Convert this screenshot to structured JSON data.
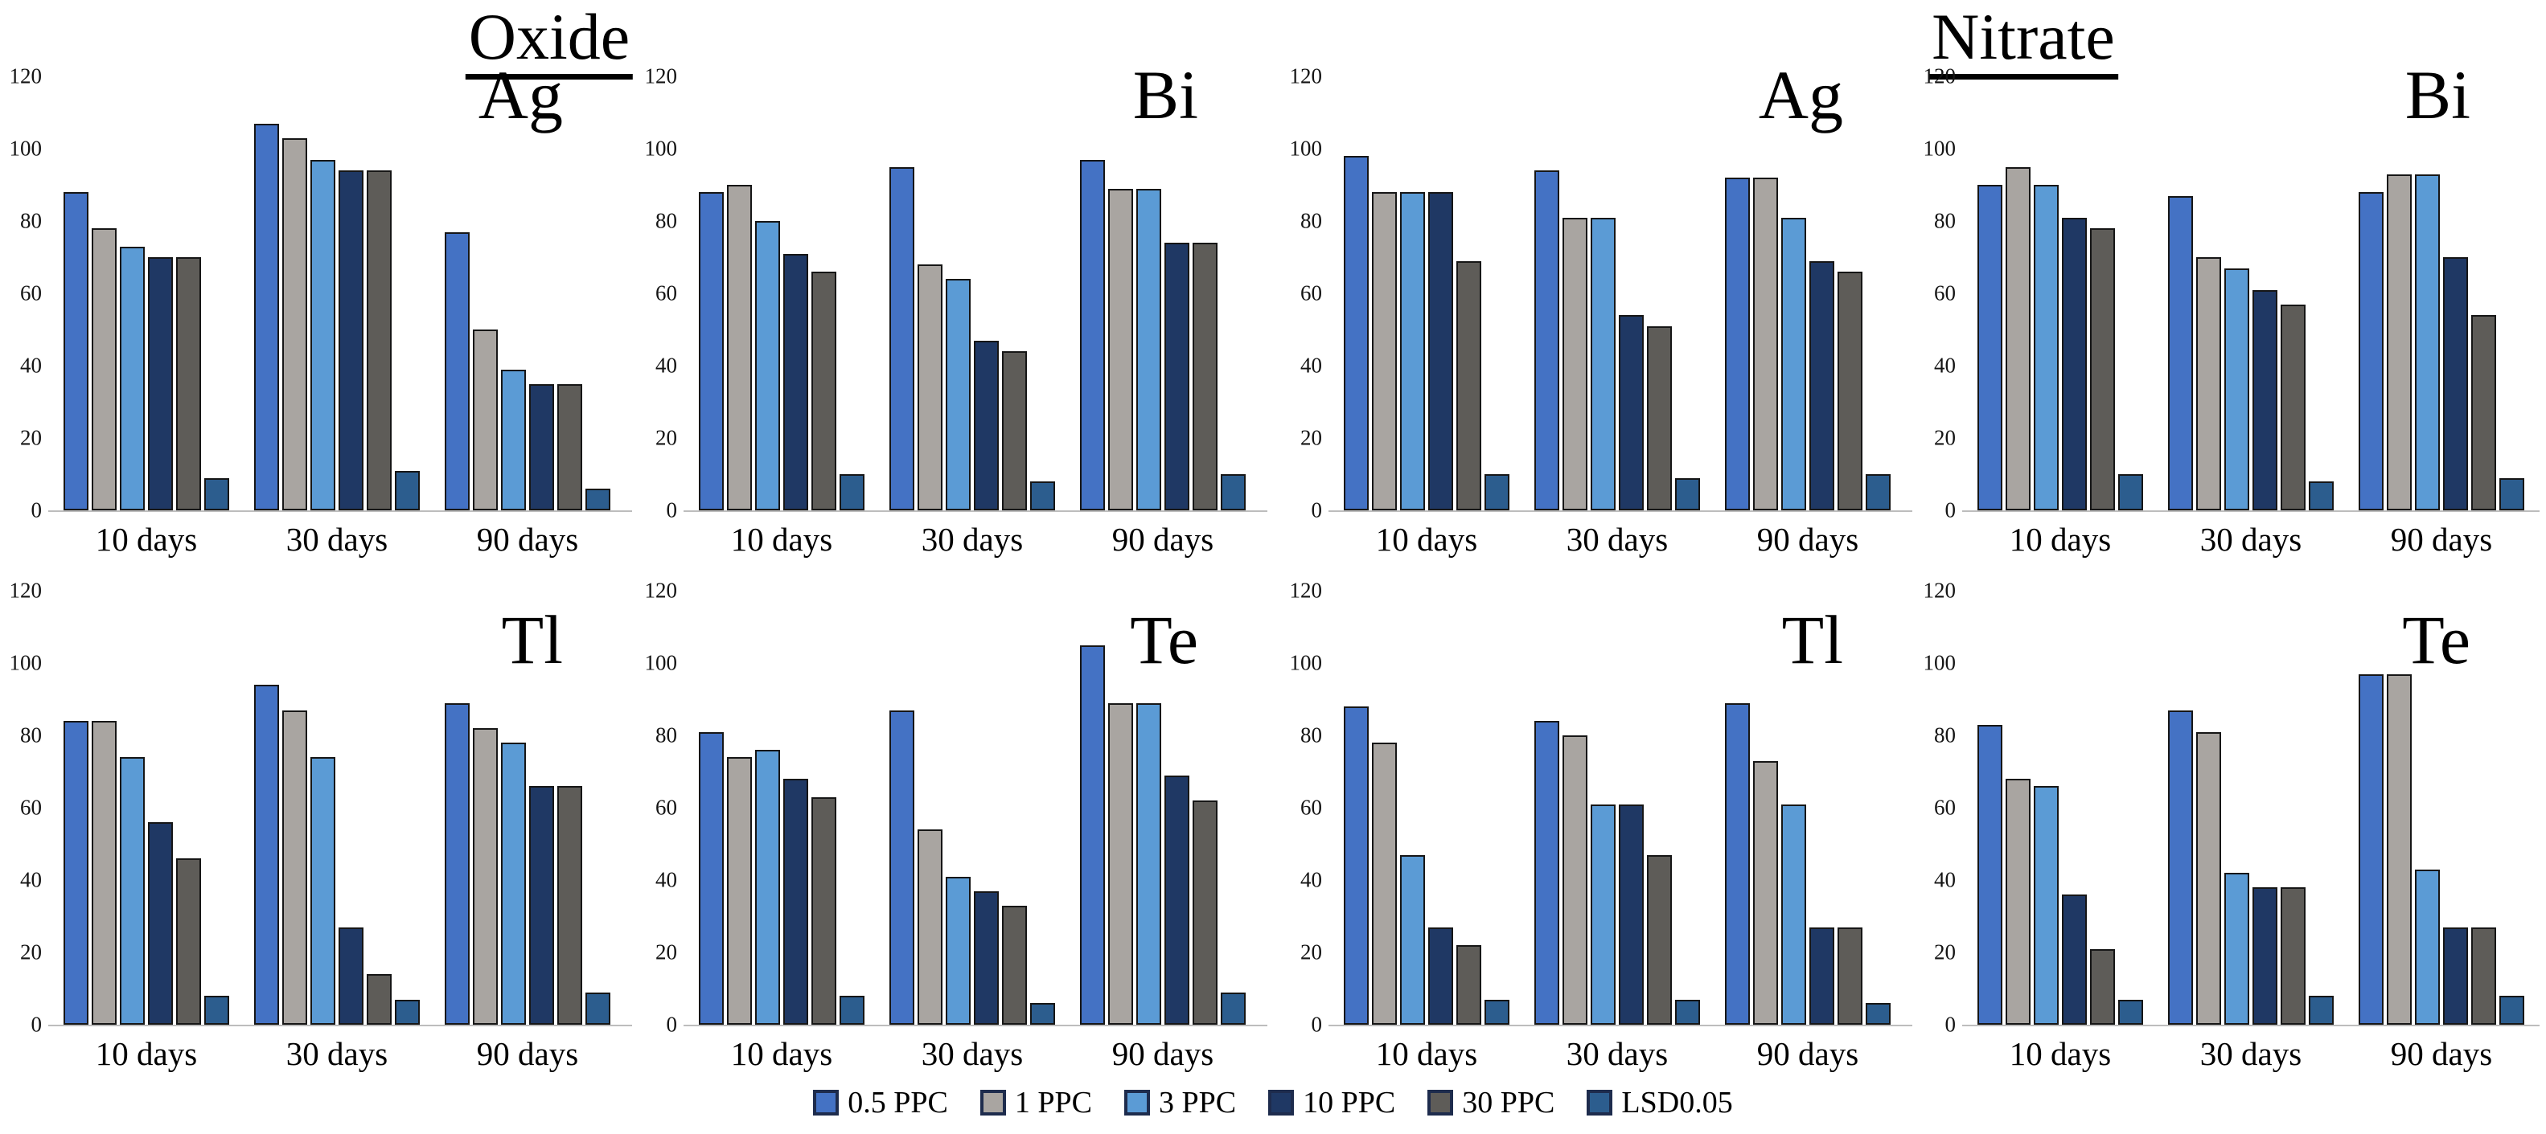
{
  "figure": {
    "titles": {
      "left": "Oxide",
      "right": "Nitrate"
    }
  },
  "axis": {
    "ylim": [
      0,
      120
    ],
    "ticks": [
      0,
      20,
      40,
      60,
      80,
      100,
      120
    ],
    "grid": false,
    "axis_line_color": "#bdbdbd",
    "tick_color": "#141414"
  },
  "categories": [
    "10 days",
    "30 days",
    "90 days"
  ],
  "series_names": [
    "0.5 PPC",
    "1 PPC",
    "3 PPC",
    "10 PPC",
    "30 PPC",
    "LSD0.05"
  ],
  "series_colors": [
    "#4472c4",
    "#a9a5a1",
    "#5b9bd5",
    "#1f3864",
    "#5e5c58",
    "#2c5d8e"
  ],
  "legend": {
    "position": "bottom-center",
    "swatch_border": "#1e2c4d",
    "items": [
      {
        "label": "0.5 PPC",
        "color": "#4472c4"
      },
      {
        "label": "1 PPC",
        "color": "#a9a5a1"
      },
      {
        "label": "3 PPC",
        "color": "#5b9bd5"
      },
      {
        "label": "10 PPC",
        "color": "#1f3864"
      },
      {
        "label": "30 PPC",
        "color": "#5e5c58"
      },
      {
        "label": "LSD0.05",
        "color": "#2c5d8e"
      }
    ]
  },
  "chart_data": [
    {
      "type": "bar",
      "group": "Oxide",
      "element": "Ag",
      "categories": [
        "10 days",
        "30 days",
        "90 days"
      ],
      "ylim": [
        0,
        120
      ],
      "series": [
        {
          "name": "0.5 PPC",
          "values": [
            87,
            106,
            76
          ]
        },
        {
          "name": "1 PPC",
          "values": [
            77,
            102,
            49
          ]
        },
        {
          "name": "3 PPC",
          "values": [
            72,
            96,
            38
          ]
        },
        {
          "name": "10 PPC",
          "values": [
            69,
            93,
            34
          ]
        },
        {
          "name": "30 PPC",
          "values": [
            69,
            93,
            34
          ]
        },
        {
          "name": "LSD0.05",
          "values": [
            8,
            10,
            5
          ]
        }
      ]
    },
    {
      "type": "bar",
      "group": "Oxide",
      "element": "Bi",
      "categories": [
        "10 days",
        "30 days",
        "90 days"
      ],
      "ylim": [
        0,
        120
      ],
      "series": [
        {
          "name": "0.5 PPC",
          "values": [
            87,
            94,
            96
          ]
        },
        {
          "name": "1 PPC",
          "values": [
            89,
            67,
            88
          ]
        },
        {
          "name": "3 PPC",
          "values": [
            79,
            63,
            88
          ]
        },
        {
          "name": "10 PPC",
          "values": [
            70,
            46,
            73
          ]
        },
        {
          "name": "30 PPC",
          "values": [
            65,
            43,
            73
          ]
        },
        {
          "name": "LSD0.05",
          "values": [
            9,
            7,
            9
          ]
        }
      ]
    },
    {
      "type": "bar",
      "group": "Nitrate",
      "element": "Ag",
      "categories": [
        "10 days",
        "30 days",
        "90 days"
      ],
      "ylim": [
        0,
        120
      ],
      "series": [
        {
          "name": "0.5 PPC",
          "values": [
            97,
            93,
            91
          ]
        },
        {
          "name": "1 PPC",
          "values": [
            87,
            80,
            91
          ]
        },
        {
          "name": "3 PPC",
          "values": [
            87,
            80,
            80
          ]
        },
        {
          "name": "10 PPC",
          "values": [
            87,
            53,
            68
          ]
        },
        {
          "name": "30 PPC",
          "values": [
            68,
            50,
            65
          ]
        },
        {
          "name": "LSD0.05",
          "values": [
            9,
            8,
            9
          ]
        }
      ]
    },
    {
      "type": "bar",
      "group": "Nitrate",
      "element": "Bi",
      "categories": [
        "10 days",
        "30 days",
        "90 days"
      ],
      "ylim": [
        0,
        120
      ],
      "series": [
        {
          "name": "0.5 PPC",
          "values": [
            89,
            86,
            87
          ]
        },
        {
          "name": "1 PPC",
          "values": [
            94,
            69,
            92
          ]
        },
        {
          "name": "3 PPC",
          "values": [
            89,
            66,
            92
          ]
        },
        {
          "name": "10 PPC",
          "values": [
            80,
            60,
            69
          ]
        },
        {
          "name": "30 PPC",
          "values": [
            77,
            56,
            53
          ]
        },
        {
          "name": "LSD0.05",
          "values": [
            9,
            7,
            8
          ]
        }
      ]
    },
    {
      "type": "bar",
      "group": "Oxide",
      "element": "Tl",
      "categories": [
        "10 days",
        "30 days",
        "90 days"
      ],
      "ylim": [
        0,
        120
      ],
      "series": [
        {
          "name": "0.5 PPC",
          "values": [
            83,
            93,
            88
          ]
        },
        {
          "name": "1 PPC",
          "values": [
            83,
            86,
            81
          ]
        },
        {
          "name": "3 PPC",
          "values": [
            73,
            73,
            77
          ]
        },
        {
          "name": "10 PPC",
          "values": [
            55,
            26,
            65
          ]
        },
        {
          "name": "30 PPC",
          "values": [
            45,
            13,
            65
          ]
        },
        {
          "name": "LSD0.05",
          "values": [
            7,
            6,
            8
          ]
        }
      ]
    },
    {
      "type": "bar",
      "group": "Oxide",
      "element": "Te",
      "categories": [
        "10 days",
        "30 days",
        "90 days"
      ],
      "ylim": [
        0,
        120
      ],
      "series": [
        {
          "name": "0.5 PPC",
          "values": [
            80,
            86,
            104
          ]
        },
        {
          "name": "1 PPC",
          "values": [
            73,
            53,
            88
          ]
        },
        {
          "name": "3 PPC",
          "values": [
            75,
            40,
            88
          ]
        },
        {
          "name": "10 PPC",
          "values": [
            67,
            36,
            68
          ]
        },
        {
          "name": "30 PPC",
          "values": [
            62,
            32,
            61
          ]
        },
        {
          "name": "LSD0.05",
          "values": [
            7,
            5,
            8
          ]
        }
      ]
    },
    {
      "type": "bar",
      "group": "Nitrate",
      "element": "Tl",
      "categories": [
        "10 days",
        "30 days",
        "90 days"
      ],
      "ylim": [
        0,
        120
      ],
      "series": [
        {
          "name": "0.5 PPC",
          "values": [
            87,
            83,
            88
          ]
        },
        {
          "name": "1 PPC",
          "values": [
            77,
            79,
            72
          ]
        },
        {
          "name": "3 PPC",
          "values": [
            46,
            60,
            60
          ]
        },
        {
          "name": "10 PPC",
          "values": [
            26,
            60,
            26
          ]
        },
        {
          "name": "30 PPC",
          "values": [
            21,
            46,
            26
          ]
        },
        {
          "name": "LSD0.05",
          "values": [
            6,
            6,
            5
          ]
        }
      ]
    },
    {
      "type": "bar",
      "group": "Nitrate",
      "element": "Te",
      "categories": [
        "10 days",
        "30 days",
        "90 days"
      ],
      "ylim": [
        0,
        120
      ],
      "series": [
        {
          "name": "0.5 PPC",
          "values": [
            82,
            86,
            96
          ]
        },
        {
          "name": "1 PPC",
          "values": [
            67,
            80,
            96
          ]
        },
        {
          "name": "3 PPC",
          "values": [
            65,
            41,
            42
          ]
        },
        {
          "name": "10 PPC",
          "values": [
            35,
            37,
            26
          ]
        },
        {
          "name": "30 PPC",
          "values": [
            20,
            37,
            26
          ]
        },
        {
          "name": "LSD0.05",
          "values": [
            6,
            7,
            7
          ]
        }
      ]
    }
  ]
}
